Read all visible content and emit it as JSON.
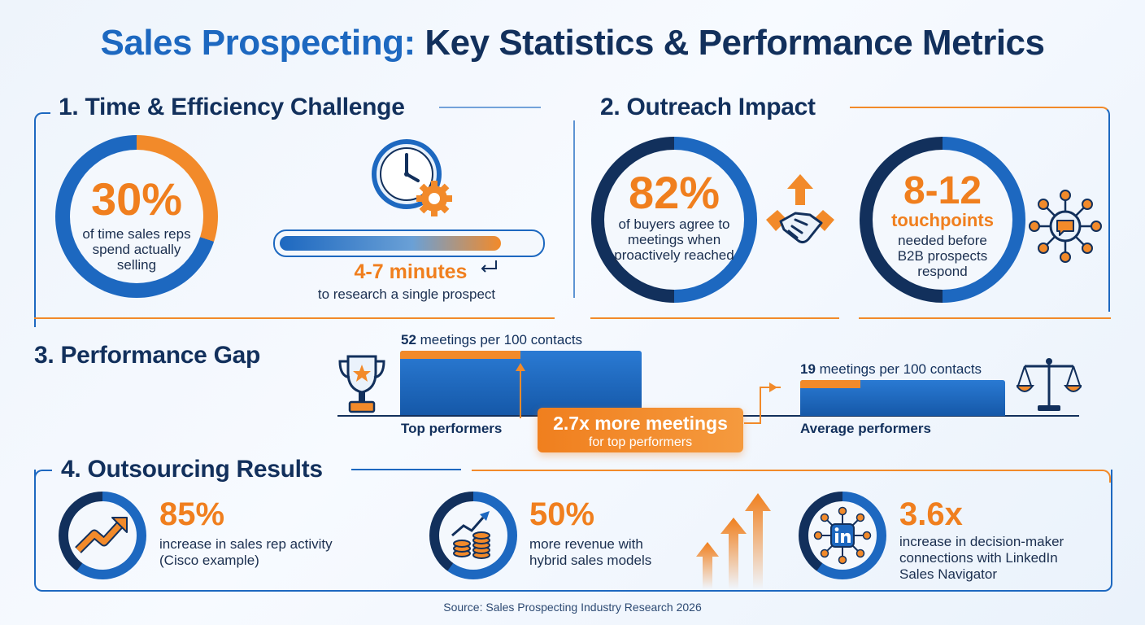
{
  "title": {
    "part1": "Sales Prospecting:",
    "part2": " Key Statistics & Performance Metrics"
  },
  "sections": {
    "time": {
      "heading": "1. Time & Efficiency Challenge",
      "stat_value": "30%",
      "stat_text": "of time sales reps spend actually selling",
      "stat_fraction": 0.3,
      "research_value": "4-7 minutes",
      "research_text": "to research a single prospect",
      "icon": "clock-gear-icon"
    },
    "outreach": {
      "heading": "2. Outreach Impact",
      "stat1_value": "82%",
      "stat1_text": "of buyers agree to meetings when proactively reached",
      "stat1_icon": "handshake-up-arrow-icon",
      "stat2_value": "8-12",
      "stat2_sub": "touchpoints",
      "stat2_text": "needed before B2B prospects respond",
      "stat2_icon": "network-chat-icon"
    },
    "performance": {
      "heading": "3. Performance Gap",
      "top_value": "52",
      "top_text": " meetings per 100 contacts",
      "top_label": "Top performers",
      "avg_value": "19",
      "avg_text": " meetings per 100 contacts",
      "avg_label": "Average performers",
      "callout_main": "2.7x more meetings",
      "callout_sub": "for top performers",
      "icons": [
        "trophy-icon",
        "balance-scale-icon"
      ]
    },
    "outsourcing": {
      "heading": "4. Outsourcing Results",
      "items": [
        {
          "value": "85%",
          "text1": "increase in sales rep activity",
          "text2": "(Cisco example)",
          "icon": "trend-up-icon"
        },
        {
          "value": "50%",
          "text1": "more revenue with",
          "text2": "hybrid sales models",
          "icon": "coins-growth-icon"
        },
        {
          "value": "3.6x",
          "text1": "increase in decision-maker",
          "text2": "connections with LinkedIn",
          "text3": "Sales Navigator",
          "icon": "linkedin-network-icon"
        }
      ]
    }
  },
  "source": "Source: Sales Prospecting Industry Research 2026",
  "colors": {
    "blue": "#1d68c0",
    "navy": "#12305c",
    "orange": "#f07f1e"
  }
}
